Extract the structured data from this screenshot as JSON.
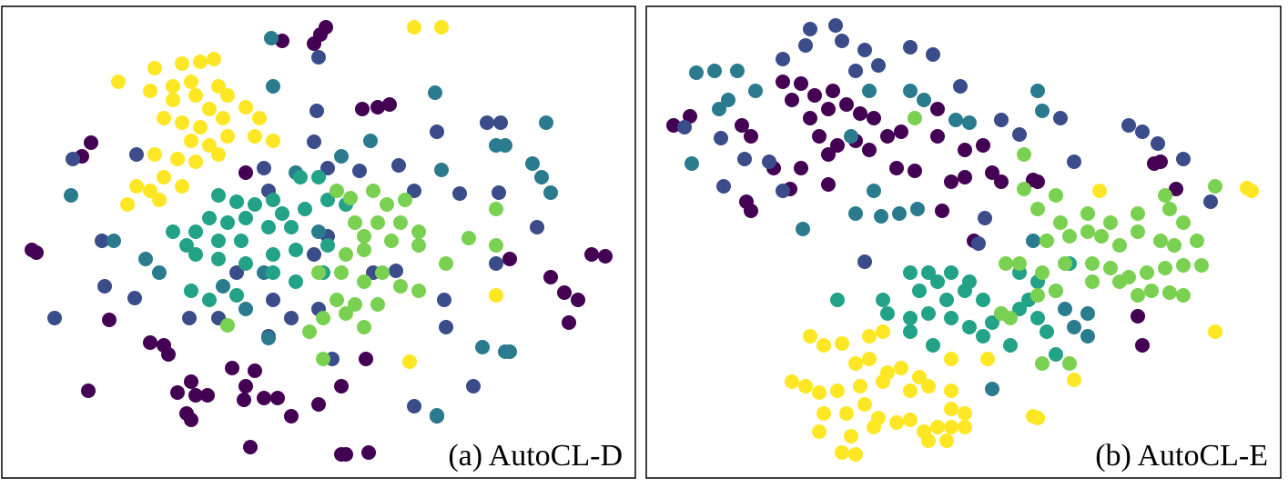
{
  "chart_data": [
    {
      "type": "scatter",
      "title": "(a) AutoCL-D",
      "xlim": [
        2,
        698
      ],
      "ylim": [
        526,
        7
      ],
      "series": [
        {
          "color": "#440154",
          "x": [
            310,
            345,
            352,
            358,
            100,
            90,
            270,
            398,
            415,
            428,
            35,
            40,
            650,
            665,
            605,
            620,
            635,
            625,
            120,
            165,
            180,
            185,
            210,
            195,
            215,
            228,
            270,
            268,
            290,
            305,
            255,
            280,
            320,
            350,
            375,
            402,
            97,
            205,
            210,
            275,
            375,
            380,
            405,
            560
          ],
          "values": [
            45,
            48,
            38,
            30,
            157,
            172,
            190,
            120,
            118,
            115,
            275,
            278,
            280,
            282,
            305,
            322,
            330,
            355,
            352,
            377,
            380,
            390,
            420,
            432,
            435,
            435,
            425,
            440,
            438,
            438,
            405,
            408,
            458,
            445,
            425,
            395,
            430,
            455,
            462,
            492,
            500,
            500,
            498,
            285
          ]
        },
        {
          "color": "#3b4c8a",
          "x": [
            350,
            348,
            345,
            80,
            150,
            290,
            295,
            360,
            395,
            438,
            455,
            480,
            505,
            535,
            550,
            548,
            112,
            115,
            148,
            60,
            208,
            240,
            300,
            320,
            350,
            295,
            365,
            435,
            490,
            488,
            520,
            455,
            480,
            360,
            345,
            410,
            260,
            590,
            545
          ],
          "values": [
            63,
            122,
            156,
            175,
            170,
            185,
            210,
            185,
            188,
            182,
            210,
            145,
            213,
            135,
            135,
            212,
            265,
            315,
            328,
            350,
            350,
            350,
            330,
            350,
            340,
            370,
            395,
            298,
            360,
            330,
            425,
            447,
            458,
            260,
            280,
            300,
            300,
            250,
            290
          ]
        },
        {
          "color": "#2a7b8e",
          "x": [
            298,
            300,
            478,
            407,
            375,
            485,
            325,
            545,
            555,
            600,
            585,
            595,
            605,
            78,
            125,
            160,
            175,
            245,
            270,
            290,
            350,
            530,
            555,
            560,
            480,
            295
          ],
          "values": [
            42,
            95,
            102,
            155,
            172,
            187,
            190,
            160,
            160,
            135,
            180,
            195,
            212,
            215,
            265,
            285,
            300,
            315,
            340,
            300,
            255,
            382,
            387,
            387,
            457,
            372
          ]
        },
        {
          "color": "#22a286",
          "x": [
            240,
            260,
            280,
            300,
            330,
            350,
            310,
            335,
            360,
            380,
            230,
            250,
            270,
            295,
            320,
            215,
            240,
            265,
            215,
            240,
            270,
            300,
            325,
            300,
            325,
            355,
            230,
            260,
            210,
            190,
            205,
            360
          ],
          "values": [
            215,
            222,
            225,
            220,
            195,
            195,
            235,
            230,
            220,
            225,
            240,
            245,
            240,
            250,
            250,
            255,
            265,
            265,
            280,
            285,
            290,
            280,
            275,
            300,
            310,
            300,
            330,
            325,
            320,
            255,
            270,
            270
          ]
        },
        {
          "color": "#7ad151",
          "x": [
            370,
            385,
            410,
            425,
            445,
            440,
            415,
            390,
            400,
            430,
            460,
            460,
            380,
            400,
            350,
            375,
            400,
            420,
            440,
            460,
            370,
            390,
            355,
            380,
            340,
            355,
            400,
            490,
            515,
            545,
            545,
            250,
            415
          ],
          "values": [
            210,
            218,
            210,
            225,
            220,
            245,
            245,
            245,
            260,
            265,
            255,
            270,
            280,
            275,
            300,
            300,
            310,
            300,
            315,
            320,
            330,
            335,
            350,
            345,
            365,
            395,
            360,
            290,
            262,
            230,
            270,
            358,
            335
          ]
        },
        {
          "color": "#fde725",
          "x": [
            130,
            170,
            200,
            220,
            235,
            165,
            190,
            210,
            240,
            250,
            190,
            215,
            230,
            180,
            200,
            220,
            245,
            270,
            285,
            210,
            230,
            250,
            280,
            300,
            170,
            195,
            215,
            240,
            180,
            200,
            150,
            165,
            140,
            175,
            455,
            485,
            545,
            450
          ],
          "values": [
            90,
            75,
            70,
            68,
            65,
            100,
            95,
            90,
            95,
            105,
            110,
            105,
            120,
            130,
            135,
            140,
            130,
            118,
            130,
            155,
            160,
            150,
            150,
            155,
            170,
            175,
            178,
            170,
            195,
            205,
            205,
            210,
            225,
            220,
            30,
            30,
            325,
            398
          ]
        }
      ]
    },
    {
      "type": "scatter",
      "title": "(b) AutoCL-E",
      "xlim": [
        710,
        1407
      ],
      "ylim": [
        526,
        7
      ],
      "series": [
        {
          "color": "#440154",
          "x": [
            740,
            758,
            815,
            825,
            860,
            880,
            870,
            895,
            915,
            930,
            945,
            960,
            910,
            890,
            900,
            920,
            940,
            955,
            975,
            990,
            985,
            1005,
            1030,
            1060,
            1080,
            1090,
            1100,
            1135,
            1140,
            1045,
            1060,
            850,
            880,
            910,
            820,
            825,
            868,
            910,
            1035,
            1070,
            1250,
            1255,
            1275,
            1268,
            1292,
            1030
          ],
          "values": [
            138,
            128,
            138,
            150,
            90,
            92,
            110,
            105,
            100,
            115,
            125,
            130,
            120,
            130,
            150,
            160,
            155,
            165,
            150,
            145,
            185,
            188,
            150,
            165,
            160,
            190,
            200,
            198,
            200,
            200,
            195,
            185,
            185,
            203,
            222,
            232,
            208,
            170,
            232,
            265,
            348,
            380,
            178,
            180,
            208,
            120
          ]
        },
        {
          "color": "#3b4c8a",
          "x": [
            890,
            918,
            925,
            885,
            950,
            1000,
            1025,
            940,
            965,
            860,
            752,
            792,
            818,
            845,
            795,
            860,
            1055,
            1100,
            1120,
            1165,
            1240,
            1255,
            1272,
            1300,
            1180,
            1082,
            1075,
            950,
            1330
          ],
          "values": [
            32,
            28,
            45,
            50,
            55,
            52,
            60,
            78,
            72,
            65,
            140,
            152,
            175,
            178,
            205,
            210,
            95,
            132,
            148,
            130,
            138,
            145,
            158,
            175,
            178,
            240,
            268,
            288,
            222
          ]
        },
        {
          "color": "#2a7b8e",
          "x": [
            765,
            785,
            810,
            800,
            830,
            790,
            760,
            1000,
            1015,
            935,
            955,
            1050,
            1065,
            1140,
            1145,
            960,
            940,
            968,
            988,
            1008,
            882,
            1135,
            1090,
            1170,
            1180,
            1195,
            1195
          ],
          "values": [
            80,
            78,
            78,
            110,
            100,
            120,
            180,
            100,
            110,
            150,
            100,
            132,
            135,
            100,
            122,
            210,
            235,
            238,
            235,
            230,
            252,
            265,
            428,
            340,
            360,
            345,
            370
          ]
        },
        {
          "color": "#22a286",
          "x": [
            920,
            970,
            1000,
            1010,
            1030,
            1040,
            1060,
            1080,
            1000,
            1020,
            1045,
            1065,
            1090,
            1100,
            1120,
            1140,
            1150,
            1160,
            1110,
            1080,
            975,
            1000,
            1025,
            1045,
            1065,
            1120,
            1140,
            1160,
            1175,
            1130,
            1020
          ],
          "values": [
            330,
            330,
            300,
            320,
            310,
            330,
            320,
            330,
            350,
            345,
            350,
            360,
            355,
            345,
            340,
            350,
            365,
            390,
            380,
            370,
            345,
            365,
            380,
            300,
            310,
            300,
            310,
            320,
            290,
            330,
            300
          ]
        },
        {
          "color": "#7ad151",
          "x": [
            1005,
            1125,
            1125,
            1160,
            1140,
            1165,
            1195,
            1220,
            1250,
            1280,
            1285,
            1300,
            1335,
            1150,
            1175,
            1195,
            1210,
            1230,
            1250,
            1275,
            1290,
            1315,
            1105,
            1120,
            1145,
            1170,
            1200,
            1220,
            1240,
            1260,
            1280,
            1300,
            1320,
            1140,
            1160,
            1200,
            1230,
            1250,
            1265,
            1285,
            1300,
            1110,
            1100,
            1145,
            1175
          ],
          "values": [
            130,
            170,
            208,
            215,
            230,
            245,
            235,
            245,
            235,
            215,
            230,
            245,
            205,
            265,
            260,
            255,
            260,
            270,
            255,
            265,
            270,
            265,
            290,
            290,
            300,
            290,
            290,
            295,
            305,
            300,
            295,
            292,
            292,
            325,
            320,
            310,
            310,
            325,
            320,
            322,
            325,
            350,
            345,
            400,
            400
          ]
        },
        {
          "color": "#fde725",
          "x": [
            1208,
            1370,
            1375,
            1335,
            1140,
            1135,
            890,
            905,
            925,
            955,
            970,
            940,
            955,
            975,
            990,
            1010,
            1045,
            870,
            885,
            900,
            920,
            945,
            970,
            1000,
            1020,
            1045,
            1060,
            905,
            930,
            950,
            965,
            985,
            1000,
            1030,
            1045,
            1060,
            900,
            935,
            960,
            1015,
            1020,
            1040,
            925,
            940,
            1180,
            1085,
            1045
          ],
          "values": [
            210,
            207,
            210,
            365,
            460,
            458,
            370,
            380,
            378,
            370,
            365,
            400,
            395,
            410,
            405,
            415,
            395,
            420,
            425,
            432,
            430,
            425,
            420,
            430,
            425,
            430,
            455,
            455,
            455,
            445,
            460,
            465,
            462,
            470,
            470,
            470,
            475,
            480,
            470,
            475,
            485,
            485,
            498,
            500,
            418,
            395,
            450
          ]
        }
      ]
    }
  ]
}
